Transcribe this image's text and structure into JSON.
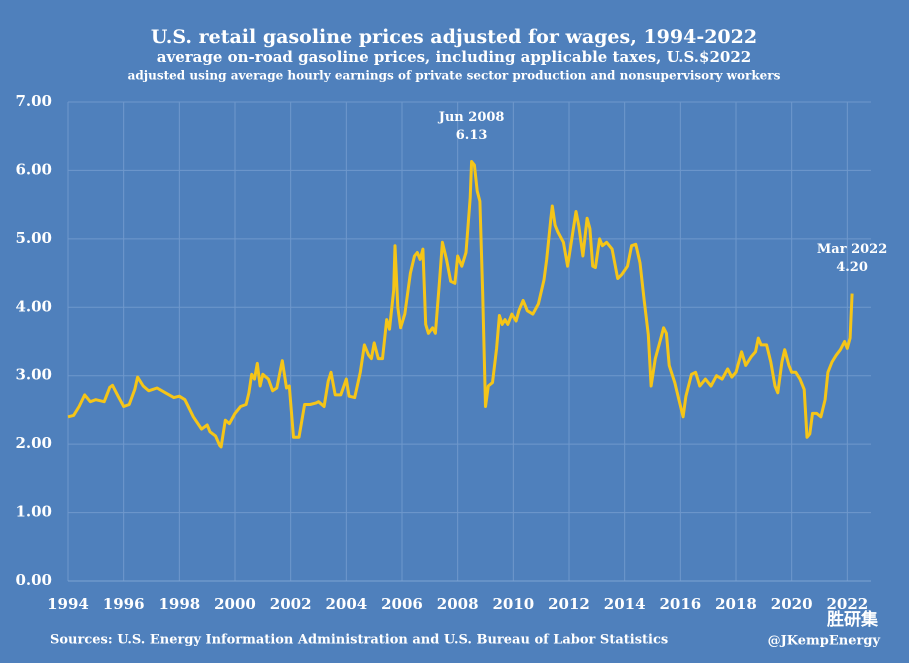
{
  "chart_data": {
    "type": "line",
    "title": "U.S. retail gasoline prices adjusted for wages, 1994-2022",
    "subtitle": "average on-road gasoline prices, including applicable taxes, U.S.$2022",
    "subtitle2": "adjusted using average hourly earnings of private sector production and nonsupervisory workers",
    "source": "Sources: U.S. Energy Information Administration and U.S. Bureau of Labor Statistics",
    "credit": "@JKempEnergy",
    "watermark": "胜研集",
    "grid": true,
    "xlim": [
      1994,
      2022.85
    ],
    "ylim": [
      0,
      7
    ],
    "xticks": [
      1994,
      1996,
      1998,
      2000,
      2002,
      2004,
      2006,
      2008,
      2010,
      2012,
      2014,
      2016,
      2018,
      2020,
      2022
    ],
    "yticks": [
      {
        "value": 0,
        "label": "0.00"
      },
      {
        "value": 1,
        "label": "1.00"
      },
      {
        "value": 2,
        "label": "2.00"
      },
      {
        "value": 3,
        "label": "3.00"
      },
      {
        "value": 4,
        "label": "4.00"
      },
      {
        "value": 5,
        "label": "5.00"
      },
      {
        "value": 6,
        "label": "6.00"
      },
      {
        "value": 7,
        "label": "7.00"
      }
    ],
    "annotations": [
      {
        "x": 2008.5,
        "y": 6.13,
        "label": "Jun 2008",
        "value_label": "6.13"
      },
      {
        "x": 2022.17,
        "y": 4.2,
        "label": "Mar 2022",
        "value_label": "4.20"
      }
    ],
    "x": [
      1994.0,
      1994.2,
      1994.4,
      1994.6,
      1994.8,
      1995.0,
      1995.3,
      1995.5,
      1995.6,
      1995.8,
      1996.0,
      1996.2,
      1996.4,
      1996.5,
      1996.7,
      1996.9,
      1997.2,
      1997.5,
      1997.8,
      1998.0,
      1998.2,
      1998.5,
      1998.8,
      1999.0,
      1999.1,
      1999.3,
      1999.45,
      1999.5,
      1999.65,
      1999.8,
      2000.0,
      2000.2,
      2000.4,
      2000.5,
      2000.6,
      2000.7,
      2000.8,
      2000.9,
      2001.0,
      2001.2,
      2001.35,
      2001.5,
      2001.7,
      2001.85,
      2001.95,
      2002.1,
      2002.3,
      2002.5,
      2002.7,
      2002.9,
      2003.0,
      2003.2,
      2003.35,
      2003.45,
      2003.6,
      2003.8,
      2004.0,
      2004.1,
      2004.3,
      2004.5,
      2004.65,
      2004.8,
      2004.9,
      2005.0,
      2005.15,
      2005.3,
      2005.45,
      2005.55,
      2005.7,
      2005.75,
      2005.85,
      2005.95,
      2006.1,
      2006.3,
      2006.45,
      2006.55,
      2006.65,
      2006.75,
      2006.85,
      2006.95,
      2007.1,
      2007.2,
      2007.35,
      2007.45,
      2007.6,
      2007.75,
      2007.9,
      2008.0,
      2008.15,
      2008.3,
      2008.45,
      2008.5,
      2008.6,
      2008.7,
      2008.8,
      2008.9,
      2009.0,
      2009.1,
      2009.25,
      2009.4,
      2009.5,
      2009.6,
      2009.7,
      2009.8,
      2009.95,
      2010.1,
      2010.2,
      2010.35,
      2010.5,
      2010.7,
      2010.9,
      2011.1,
      2011.2,
      2011.35,
      2011.4,
      2011.5,
      2011.6,
      2011.8,
      2011.95,
      2012.1,
      2012.25,
      2012.35,
      2012.5,
      2012.65,
      2012.75,
      2012.85,
      2012.95,
      2013.1,
      2013.2,
      2013.35,
      2013.55,
      2013.75,
      2013.9,
      2014.1,
      2014.25,
      2014.4,
      2014.55,
      2014.7,
      2014.85,
      2014.95,
      2015.1,
      2015.3,
      2015.4,
      2015.5,
      2015.6,
      2015.8,
      2015.95,
      2016.1,
      2016.2,
      2016.4,
      2016.55,
      2016.7,
      2016.9,
      2017.1,
      2017.3,
      2017.5,
      2017.7,
      2017.85,
      2018.0,
      2018.2,
      2018.35,
      2018.55,
      2018.7,
      2018.8,
      2018.9,
      2019.1,
      2019.25,
      2019.4,
      2019.5,
      2019.65,
      2019.75,
      2019.9,
      2020.0,
      2020.15,
      2020.3,
      2020.45,
      2020.55,
      2020.65,
      2020.75,
      2020.9,
      2021.05,
      2021.2,
      2021.3,
      2021.45,
      2021.6,
      2021.75,
      2021.9,
      2022.0,
      2022.1,
      2022.17
    ],
    "series": [
      {
        "color": "#f5c518",
        "values": [
          2.4,
          2.42,
          2.55,
          2.72,
          2.62,
          2.65,
          2.62,
          2.83,
          2.86,
          2.7,
          2.55,
          2.58,
          2.8,
          2.98,
          2.85,
          2.78,
          2.82,
          2.75,
          2.68,
          2.7,
          2.65,
          2.4,
          2.22,
          2.28,
          2.18,
          2.12,
          1.98,
          1.96,
          2.35,
          2.3,
          2.45,
          2.55,
          2.58,
          2.75,
          3.02,
          2.95,
          3.18,
          2.85,
          3.02,
          2.95,
          2.78,
          2.82,
          3.22,
          2.82,
          2.85,
          2.1,
          2.1,
          2.58,
          2.58,
          2.6,
          2.62,
          2.55,
          2.92,
          3.05,
          2.72,
          2.72,
          2.95,
          2.7,
          2.68,
          3.05,
          3.45,
          3.3,
          3.25,
          3.48,
          3.25,
          3.25,
          3.82,
          3.68,
          4.25,
          4.9,
          4.0,
          3.7,
          3.9,
          4.5,
          4.75,
          4.8,
          4.7,
          4.85,
          3.75,
          3.62,
          3.7,
          3.62,
          4.4,
          4.95,
          4.7,
          4.38,
          4.35,
          4.75,
          4.6,
          4.8,
          5.6,
          6.13,
          6.08,
          5.7,
          5.55,
          4.2,
          2.55,
          2.85,
          2.9,
          3.4,
          3.88,
          3.75,
          3.82,
          3.75,
          3.9,
          3.8,
          3.95,
          4.1,
          3.95,
          3.9,
          4.05,
          4.4,
          4.7,
          5.3,
          5.48,
          5.2,
          5.1,
          4.95,
          4.6,
          5.0,
          5.4,
          5.2,
          4.75,
          5.3,
          5.15,
          4.6,
          4.58,
          5.0,
          4.9,
          4.95,
          4.85,
          4.42,
          4.48,
          4.6,
          4.9,
          4.92,
          4.65,
          4.1,
          3.6,
          2.85,
          3.25,
          3.55,
          3.7,
          3.62,
          3.15,
          2.9,
          2.65,
          2.4,
          2.7,
          3.02,
          3.05,
          2.85,
          2.95,
          2.85,
          3.0,
          2.95,
          3.1,
          2.98,
          3.05,
          3.35,
          3.15,
          3.28,
          3.35,
          3.55,
          3.45,
          3.45,
          3.2,
          2.85,
          2.75,
          3.2,
          3.38,
          3.15,
          3.05,
          3.05,
          2.95,
          2.8,
          2.1,
          2.15,
          2.45,
          2.45,
          2.4,
          2.65,
          3.05,
          3.2,
          3.3,
          3.38,
          3.5,
          3.4,
          3.55,
          4.2
        ]
      }
    ]
  }
}
